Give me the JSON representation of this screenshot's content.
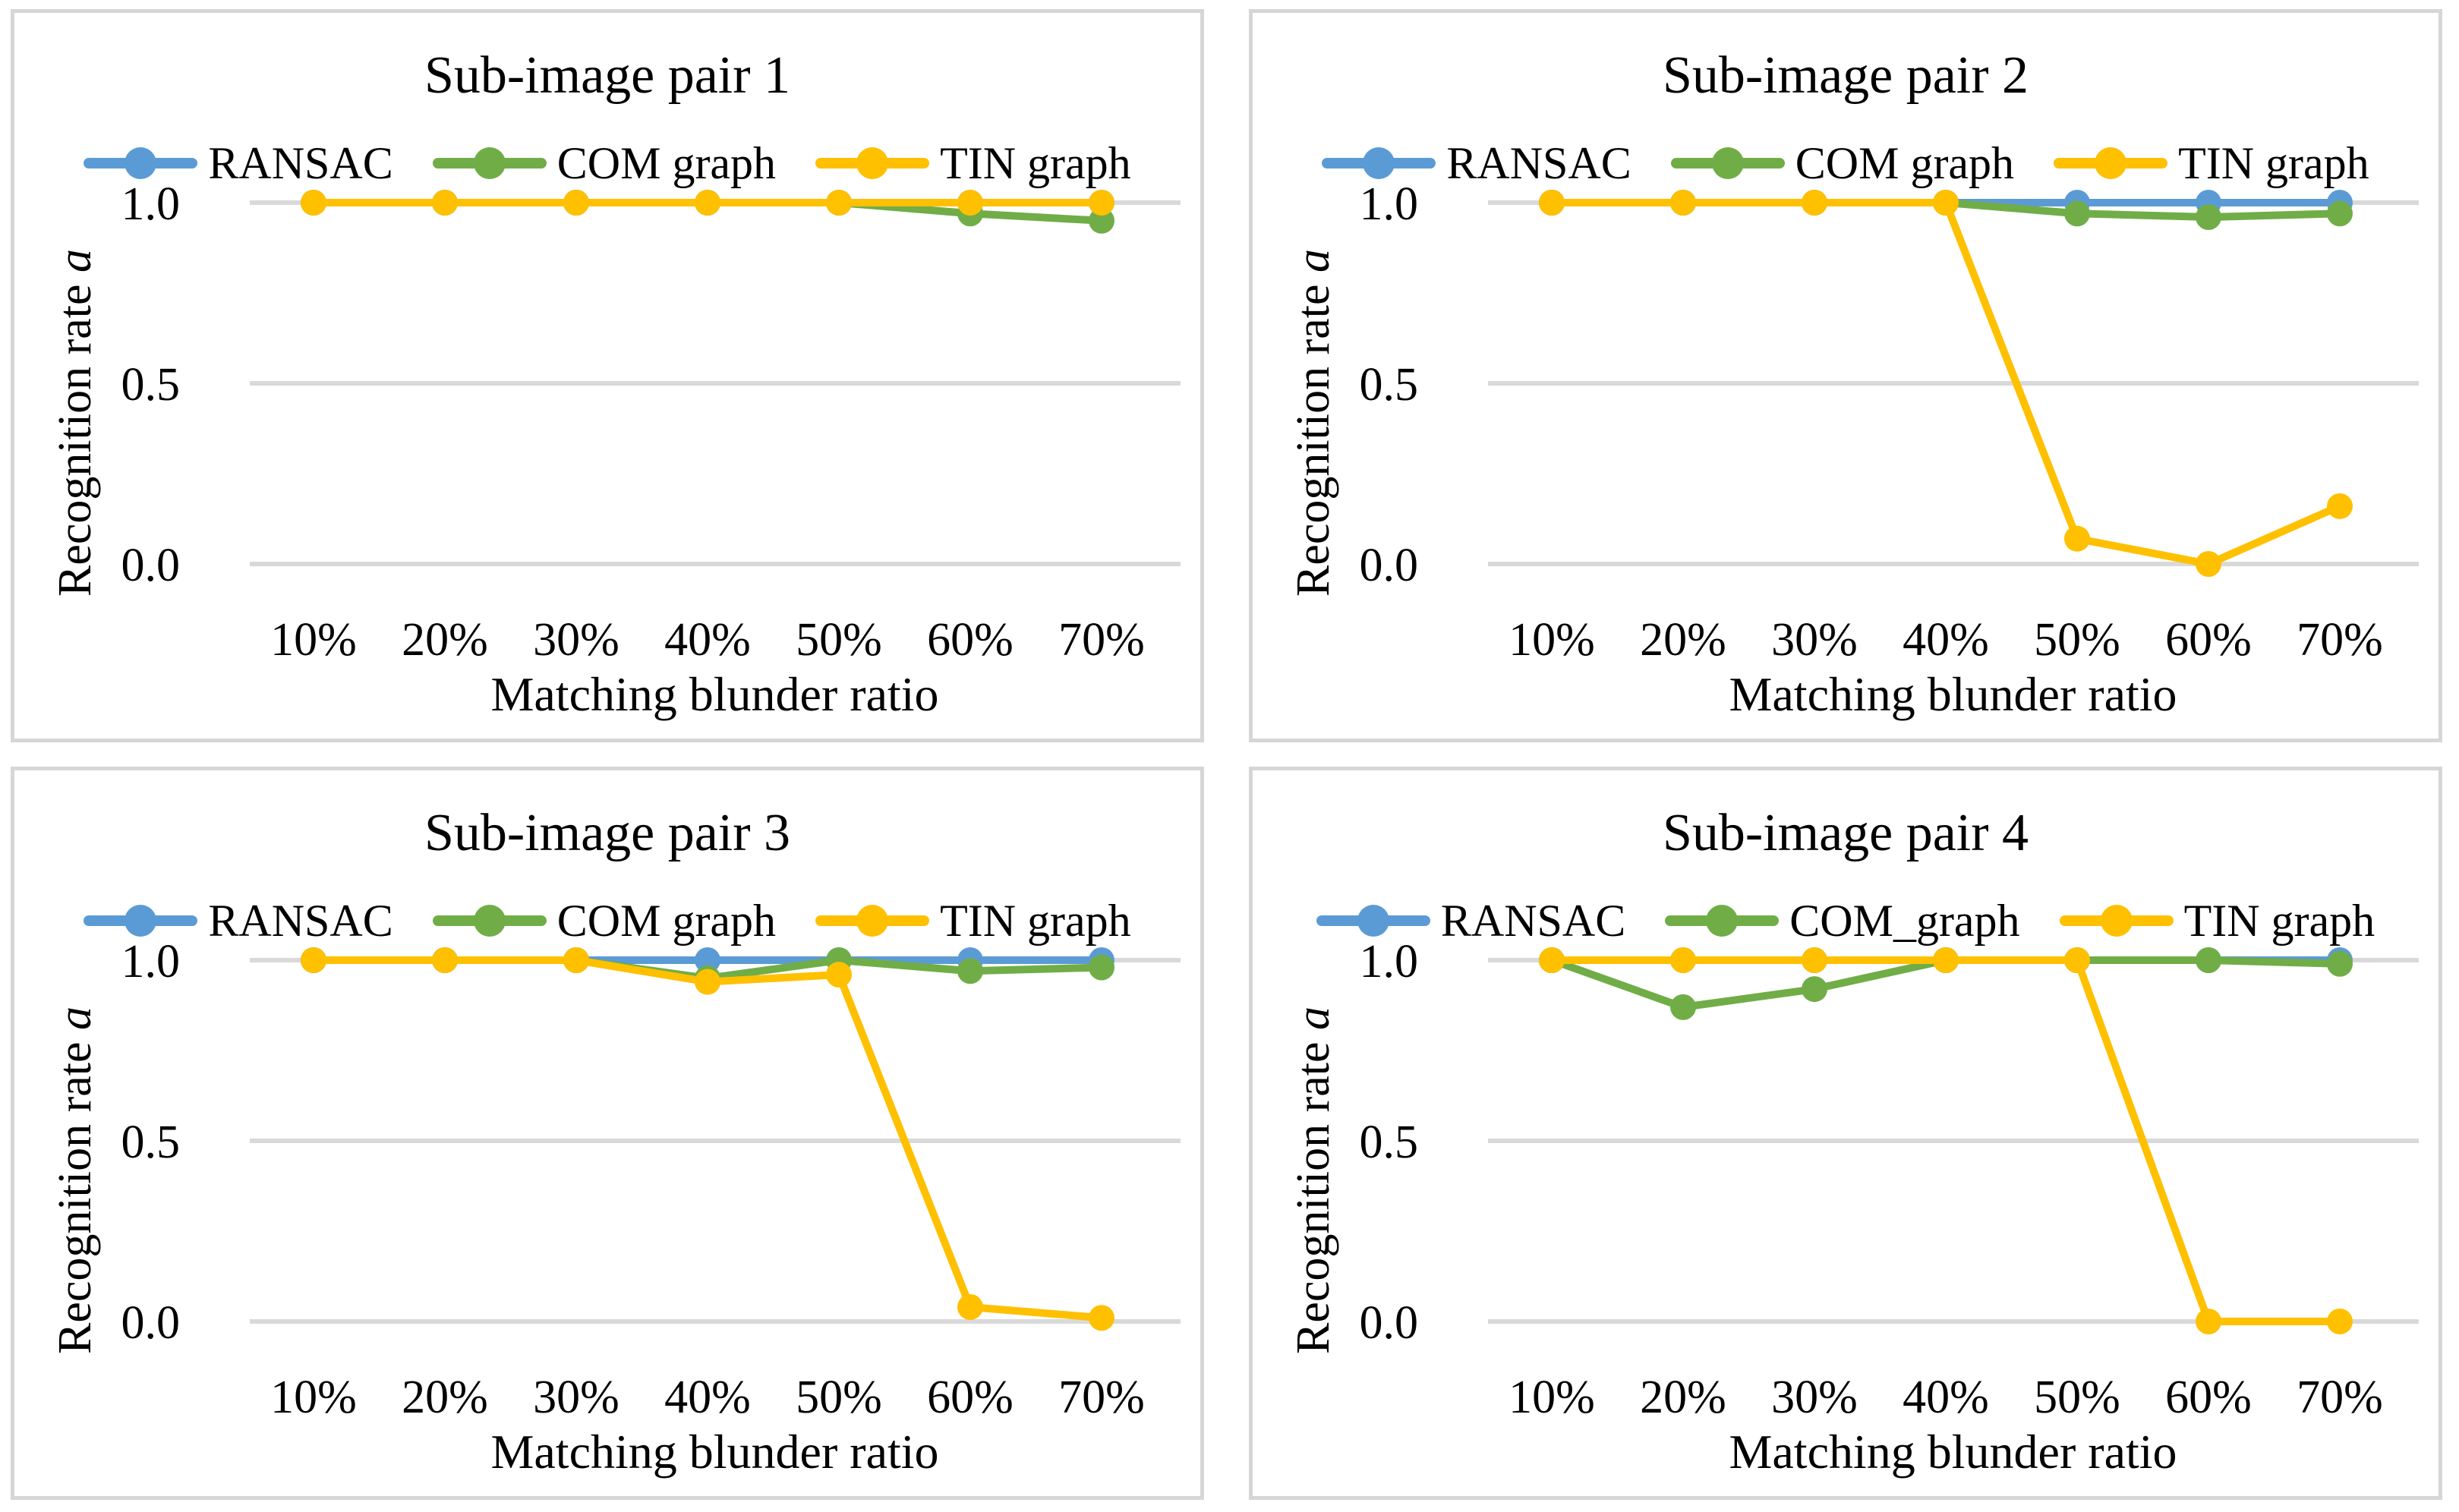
{
  "colors": {
    "background": "#FFFFFF",
    "panel_border": "#D6D6D6",
    "gridline": "#D9D9D9",
    "text": "#000000",
    "ransac_blue": "#5B9BD5",
    "com_green": "#70AD47",
    "tin_yellow": "#FFC000"
  },
  "chart_data": [
    {
      "type": "line",
      "title": "Sub-image pair 1",
      "x_axis_label": "Matching blunder ratio",
      "y_axis_label": "Recognition rate",
      "y_axis_label_var": "a",
      "categories": [
        "10%",
        "20%",
        "30%",
        "40%",
        "50%",
        "60%",
        "70%"
      ],
      "y_tick_labels": [
        "1.0",
        "0.5",
        "0.0"
      ],
      "y_tick_values": [
        1.0,
        0.5,
        0.0
      ],
      "ylim": [
        0.0,
        1.0
      ],
      "grid": true,
      "legend_position": "top",
      "series": [
        {
          "name": "RANSAC",
          "color": "#5B9BD5",
          "values": [
            1.0,
            1.0,
            1.0,
            1.0,
            1.0,
            1.0,
            1.0
          ]
        },
        {
          "name": "COM graph",
          "color": "#70AD47",
          "values": [
            1.0,
            1.0,
            1.0,
            1.0,
            1.0,
            0.97,
            0.95
          ]
        },
        {
          "name": "TIN graph",
          "color": "#FFC000",
          "values": [
            1.0,
            1.0,
            1.0,
            1.0,
            1.0,
            1.0,
            1.0
          ]
        }
      ]
    },
    {
      "type": "line",
      "title": "Sub-image pair 2",
      "x_axis_label": "Matching blunder ratio",
      "y_axis_label": "Recognition rate",
      "y_axis_label_var": "a",
      "categories": [
        "10%",
        "20%",
        "30%",
        "40%",
        "50%",
        "60%",
        "70%"
      ],
      "y_tick_labels": [
        "1.0",
        "0.5",
        "0.0"
      ],
      "y_tick_values": [
        1.0,
        0.5,
        0.0
      ],
      "ylim": [
        0.0,
        1.0
      ],
      "grid": true,
      "legend_position": "top",
      "series": [
        {
          "name": "RANSAC",
          "color": "#5B9BD5",
          "values": [
            1.0,
            1.0,
            1.0,
            1.0,
            1.0,
            1.0,
            1.0
          ]
        },
        {
          "name": "COM graph",
          "color": "#70AD47",
          "values": [
            1.0,
            1.0,
            1.0,
            1.0,
            0.97,
            0.96,
            0.97
          ]
        },
        {
          "name": "TIN graph",
          "color": "#FFC000",
          "values": [
            1.0,
            1.0,
            1.0,
            1.0,
            0.07,
            0.0,
            0.16
          ]
        }
      ]
    },
    {
      "type": "line",
      "title": "Sub-image pair 3",
      "x_axis_label": "Matching blunder ratio",
      "y_axis_label": "Recognition rate",
      "y_axis_label_var": "a",
      "categories": [
        "10%",
        "20%",
        "30%",
        "40%",
        "50%",
        "60%",
        "70%"
      ],
      "y_tick_labels": [
        "1.0",
        "0.5",
        "0.0"
      ],
      "y_tick_values": [
        1.0,
        0.5,
        0.0
      ],
      "ylim": [
        0.0,
        1.0
      ],
      "grid": true,
      "legend_position": "top",
      "series": [
        {
          "name": "RANSAC",
          "color": "#5B9BD5",
          "values": [
            1.0,
            1.0,
            1.0,
            1.0,
            1.0,
            1.0,
            1.0
          ]
        },
        {
          "name": "COM graph",
          "color": "#70AD47",
          "values": [
            1.0,
            1.0,
            1.0,
            0.95,
            1.0,
            0.97,
            0.98
          ]
        },
        {
          "name": "TIN graph",
          "color": "#FFC000",
          "values": [
            1.0,
            1.0,
            1.0,
            0.94,
            0.96,
            0.04,
            0.01
          ]
        }
      ]
    },
    {
      "type": "line",
      "title": "Sub-image pair 4",
      "x_axis_label": "Matching blunder ratio",
      "y_axis_label": "Recognition rate",
      "y_axis_label_var": "a",
      "categories": [
        "10%",
        "20%",
        "30%",
        "40%",
        "50%",
        "60%",
        "70%"
      ],
      "y_tick_labels": [
        "1.0",
        "0.5",
        "0.0"
      ],
      "y_tick_values": [
        1.0,
        0.5,
        0.0
      ],
      "ylim": [
        0.0,
        1.0
      ],
      "grid": true,
      "legend_position": "top",
      "series": [
        {
          "name": "RANSAC",
          "color": "#5B9BD5",
          "values": [
            1.0,
            1.0,
            1.0,
            1.0,
            1.0,
            1.0,
            1.0
          ]
        },
        {
          "name": "COM_graph",
          "color": "#70AD47",
          "values": [
            1.0,
            0.87,
            0.92,
            1.0,
            1.0,
            1.0,
            0.99
          ]
        },
        {
          "name": "TIN graph",
          "color": "#FFC000",
          "values": [
            1.0,
            1.0,
            1.0,
            1.0,
            1.0,
            0.0,
            0.0
          ]
        }
      ]
    }
  ]
}
